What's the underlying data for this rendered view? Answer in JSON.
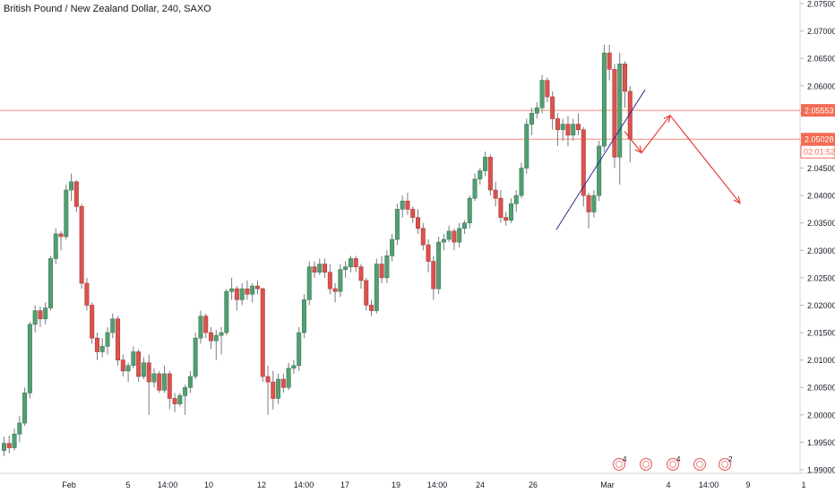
{
  "header": {
    "title": "British Pound / New Zealand Dollar, 240, SAXO"
  },
  "colors": {
    "up": "#539e72",
    "down": "#d9534f",
    "wick": "#787b86",
    "grid": "#f0f3fa",
    "axis_text": "#131722",
    "hline": "#f58e7a",
    "arrow": "#e8403a",
    "trendline": "#2d2f8f",
    "event_icon": "#e46b6b"
  },
  "chart_data": {
    "type": "candlestick",
    "title": "British Pound / New Zealand Dollar, 240, SAXO",
    "xlabel": "",
    "ylabel": "",
    "ylim": [
      1.99,
      2.075
    ],
    "y_ticks": [
      "2.07500",
      "2.07000",
      "2.06500",
      "2.06000",
      "2.05500",
      "2.05000",
      "2.04500",
      "2.04000",
      "2.03500",
      "2.03000",
      "2.02500",
      "2.02000",
      "2.01500",
      "2.01000",
      "2.00500",
      "2.00000",
      "1.99500",
      "1.99000"
    ],
    "x_ticks": [
      "Feb",
      "5",
      "14:00",
      "10",
      "12",
      "14:00",
      "17",
      "19",
      "14:00",
      "24",
      "26",
      "Mar",
      "4",
      "14:00",
      "9",
      "1"
    ],
    "grid": false,
    "price_labels": [
      {
        "value": 2.05553,
        "label": "2.05553",
        "color": "#f26b53"
      },
      {
        "value": 2.05028,
        "label": "2.05028",
        "color": "#f26b53"
      }
    ],
    "countdown": "02:01:52",
    "horizontal_lines": [
      2.05553,
      2.05028
    ],
    "trendline": {
      "from": [
        2.0338,
        2.0338
      ],
      "to": [
        2.0593,
        2.0593
      ]
    },
    "forecast_path": [
      2.0517,
      2.0478,
      2.0546,
      2.0386
    ],
    "candles": [
      [
        1.9935,
        1.996,
        1.9925,
        1.9948
      ],
      [
        1.9948,
        1.9962,
        1.993,
        1.994
      ],
      [
        1.994,
        1.9975,
        1.9935,
        1.9965
      ],
      [
        1.9965,
        1.9998,
        1.995,
        1.9985
      ],
      [
        1.9985,
        2.005,
        1.998,
        2.004
      ],
      [
        2.004,
        2.017,
        2.003,
        2.0165
      ],
      [
        2.0165,
        2.02,
        2.015,
        2.019
      ],
      [
        2.019,
        2.0198,
        2.016,
        2.0175
      ],
      [
        2.0175,
        2.0205,
        2.0165,
        2.0195
      ],
      [
        2.0195,
        2.029,
        2.019,
        2.0285
      ],
      [
        2.0285,
        2.034,
        2.0275,
        2.033
      ],
      [
        2.033,
        2.0335,
        2.03,
        2.0325
      ],
      [
        2.0325,
        2.042,
        2.032,
        2.041
      ],
      [
        2.041,
        2.044,
        2.039,
        2.0425
      ],
      [
        2.0425,
        2.0428,
        2.037,
        2.038
      ],
      [
        2.038,
        2.0385,
        2.023,
        2.024
      ],
      [
        2.024,
        2.025,
        2.019,
        2.02
      ],
      [
        2.02,
        2.0205,
        2.013,
        2.014
      ],
      [
        2.014,
        2.015,
        2.01,
        2.0115
      ],
      [
        2.0115,
        2.014,
        2.0105,
        2.0125
      ],
      [
        2.0125,
        2.016,
        2.011,
        2.015
      ],
      [
        2.015,
        2.0185,
        2.014,
        2.0175
      ],
      [
        2.0175,
        2.018,
        2.009,
        2.01
      ],
      [
        2.01,
        2.011,
        2.007,
        2.008
      ],
      [
        2.008,
        2.0095,
        2.006,
        2.009
      ],
      [
        2.009,
        2.0125,
        2.0085,
        2.0115
      ],
      [
        2.0115,
        2.012,
        2.006,
        2.007
      ],
      [
        2.007,
        2.0105,
        2.0065,
        2.0095
      ],
      [
        2.0095,
        2.011,
        2.0,
        2.006
      ],
      [
        2.006,
        2.0085,
        2.005,
        2.0075
      ],
      [
        2.0075,
        2.008,
        2.004,
        2.0045
      ],
      [
        2.0045,
        2.009,
        2.004,
        2.0075
      ],
      [
        2.0075,
        2.008,
        2.001,
        2.003
      ],
      [
        2.003,
        2.004,
        2.0005,
        2.002
      ],
      [
        2.002,
        2.004,
        2.0015,
        2.0035
      ],
      [
        2.0035,
        2.0055,
        2.0,
        2.005
      ],
      [
        2.005,
        2.008,
        2.004,
        2.007
      ],
      [
        2.007,
        2.015,
        2.0065,
        2.014
      ],
      [
        2.014,
        2.019,
        2.013,
        2.018
      ],
      [
        2.018,
        2.0185,
        2.014,
        2.015
      ],
      [
        2.015,
        2.016,
        2.012,
        2.0135
      ],
      [
        2.0135,
        2.0155,
        2.01,
        2.0145
      ],
      [
        2.0145,
        2.016,
        2.011,
        2.015
      ],
      [
        2.015,
        2.023,
        2.0145,
        2.0225
      ],
      [
        2.0225,
        2.025,
        2.021,
        2.023
      ],
      [
        2.023,
        2.0235,
        2.019,
        2.021
      ],
      [
        2.021,
        2.024,
        2.02,
        2.023
      ],
      [
        2.023,
        2.0245,
        2.021,
        2.022
      ],
      [
        2.022,
        2.024,
        2.0205,
        2.0235
      ],
      [
        2.0235,
        2.0245,
        2.022,
        2.023
      ],
      [
        2.023,
        2.0232,
        2.006,
        2.007
      ],
      [
        2.007,
        2.009,
        2.0,
        2.006
      ],
      [
        2.006,
        2.008,
        2.001,
        2.003
      ],
      [
        2.003,
        2.0075,
        2.002,
        2.0065
      ],
      [
        2.0065,
        2.0075,
        2.004,
        2.005
      ],
      [
        2.005,
        2.0095,
        2.0045,
        2.0085
      ],
      [
        2.0085,
        2.01,
        2.0075,
        2.009
      ],
      [
        2.009,
        2.016,
        2.008,
        2.015
      ],
      [
        2.015,
        2.022,
        2.014,
        2.021
      ],
      [
        2.021,
        2.028,
        2.02,
        2.027
      ],
      [
        2.027,
        2.028,
        2.025,
        2.026
      ],
      [
        2.026,
        2.0285,
        2.0255,
        2.0275
      ],
      [
        2.0275,
        2.0285,
        2.025,
        2.026
      ],
      [
        2.026,
        2.0275,
        2.022,
        2.023
      ],
      [
        2.023,
        2.024,
        2.0205,
        2.0225
      ],
      [
        2.0225,
        2.0275,
        2.0215,
        2.0265
      ],
      [
        2.0265,
        2.028,
        2.025,
        2.027
      ],
      [
        2.027,
        2.029,
        2.026,
        2.0285
      ],
      [
        2.0285,
        2.029,
        2.026,
        2.027
      ],
      [
        2.027,
        2.0275,
        2.023,
        2.0245
      ],
      [
        2.0245,
        2.025,
        2.019,
        2.02
      ],
      [
        2.02,
        2.021,
        2.018,
        2.019
      ],
      [
        2.019,
        2.0285,
        2.0185,
        2.0275
      ],
      [
        2.0275,
        2.029,
        2.024,
        2.025
      ],
      [
        2.025,
        2.03,
        2.024,
        2.029
      ],
      [
        2.029,
        2.033,
        2.028,
        2.032
      ],
      [
        2.032,
        2.0385,
        2.031,
        2.0375
      ],
      [
        2.0375,
        2.04,
        2.036,
        2.039
      ],
      [
        2.039,
        2.0405,
        2.0365,
        2.0375
      ],
      [
        2.0375,
        2.038,
        2.035,
        2.036
      ],
      [
        2.036,
        2.0375,
        2.033,
        2.034
      ],
      [
        2.034,
        2.035,
        2.03,
        2.031
      ],
      [
        2.031,
        2.032,
        2.026,
        2.028
      ],
      [
        2.028,
        2.029,
        2.021,
        2.023
      ],
      [
        2.023,
        2.0325,
        2.022,
        2.0315
      ],
      [
        2.0315,
        2.033,
        2.03,
        2.032
      ],
      [
        2.032,
        2.0345,
        2.0315,
        2.0335
      ],
      [
        2.0335,
        2.034,
        2.03,
        2.0315
      ],
      [
        2.0315,
        2.035,
        2.0305,
        2.034
      ],
      [
        2.034,
        2.0355,
        2.033,
        2.035
      ],
      [
        2.035,
        2.04,
        2.034,
        2.0395
      ],
      [
        2.0395,
        2.044,
        2.039,
        2.043
      ],
      [
        2.043,
        2.045,
        2.042,
        2.0445
      ],
      [
        2.0445,
        2.048,
        2.0435,
        2.047
      ],
      [
        2.047,
        2.0475,
        2.04,
        2.041
      ],
      [
        2.041,
        2.0425,
        2.038,
        2.0395
      ],
      [
        2.0395,
        2.041,
        2.035,
        2.036
      ],
      [
        2.036,
        2.037,
        2.0345,
        2.0355
      ],
      [
        2.0355,
        2.0395,
        2.035,
        2.0385
      ],
      [
        2.0385,
        2.041,
        2.037,
        2.04
      ],
      [
        2.04,
        2.046,
        2.0395,
        2.045
      ],
      [
        2.045,
        2.054,
        2.044,
        2.053
      ],
      [
        2.053,
        2.056,
        2.051,
        2.055
      ],
      [
        2.055,
        2.057,
        2.054,
        2.056
      ],
      [
        2.056,
        2.062,
        2.055,
        2.061
      ],
      [
        2.061,
        2.0615,
        2.057,
        2.058
      ],
      [
        2.058,
        2.059,
        2.052,
        2.054
      ],
      [
        2.054,
        2.055,
        2.049,
        2.052
      ],
      [
        2.052,
        2.054,
        2.05,
        2.053
      ],
      [
        2.053,
        2.0545,
        2.049,
        2.051
      ],
      [
        2.051,
        2.054,
        2.05,
        2.053
      ],
      [
        2.053,
        2.055,
        2.051,
        2.052
      ],
      [
        2.052,
        2.0525,
        2.038,
        2.04
      ],
      [
        2.04,
        2.0405,
        2.034,
        2.037
      ],
      [
        2.037,
        2.041,
        2.036,
        2.04
      ],
      [
        2.04,
        2.05,
        2.039,
        2.049
      ],
      [
        2.049,
        2.0675,
        2.048,
        2.066
      ],
      [
        2.066,
        2.0675,
        2.061,
        2.063
      ],
      [
        2.063,
        2.064,
        2.045,
        2.047
      ],
      [
        2.047,
        2.066,
        2.042,
        2.064
      ],
      [
        2.064,
        2.0645,
        2.056,
        2.059
      ],
      [
        2.059,
        2.06,
        2.046,
        2.0503
      ]
    ]
  }
}
